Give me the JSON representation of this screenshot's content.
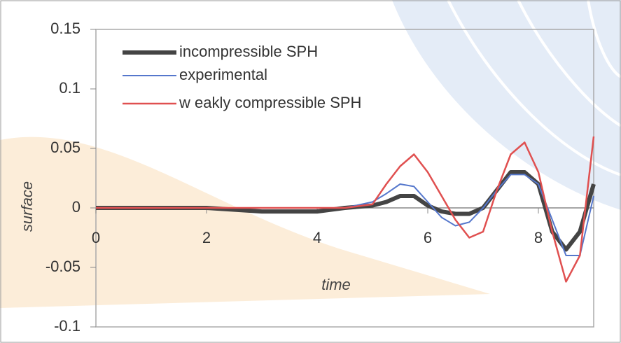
{
  "chart_data": {
    "type": "line",
    "x_label": "time",
    "y_label": "surface",
    "x": [
      0,
      1,
      2,
      3,
      4,
      4.5,
      5,
      5.25,
      5.5,
      5.75,
      6,
      6.25,
      6.5,
      6.75,
      7,
      7.25,
      7.5,
      7.75,
      8,
      8.25,
      8.5,
      8.75,
      9
    ],
    "series": [
      {
        "name": "incompressible SPH",
        "color": "#444444",
        "width": 6,
        "values": [
          0,
          0,
          0,
          -0.003,
          -0.003,
          0,
          0.002,
          0.005,
          0.01,
          0.01,
          0.002,
          -0.003,
          -0.005,
          -0.005,
          0,
          0.015,
          0.03,
          0.03,
          0.02,
          -0.02,
          -0.035,
          -0.02,
          0.02
        ]
      },
      {
        "name": "experimental",
        "color": "#5577cc",
        "width": 2,
        "values": [
          0,
          0,
          0,
          0,
          0,
          0,
          0.005,
          0.012,
          0.02,
          0.018,
          0.005,
          -0.008,
          -0.015,
          -0.012,
          0,
          0.015,
          0.028,
          0.028,
          0.02,
          -0.01,
          -0.04,
          -0.04,
          0.01
        ]
      },
      {
        "name": "w eakly compressible SPH",
        "color": "#e05050",
        "width": 2.5,
        "values": [
          0,
          0,
          0,
          0,
          0,
          0,
          0.003,
          0.02,
          0.035,
          0.045,
          0.03,
          0.01,
          -0.01,
          -0.025,
          -0.02,
          0.015,
          0.045,
          0.055,
          0.03,
          -0.02,
          -0.062,
          -0.04,
          0.06
        ]
      }
    ],
    "xlim": [
      0,
      9
    ],
    "ylim": [
      -0.1,
      0.15
    ],
    "xticks": [
      0,
      2,
      4,
      6,
      8
    ],
    "yticks": [
      0.15,
      0.1,
      0.05,
      0,
      -0.05,
      -0.1
    ],
    "legend": "upper left"
  }
}
